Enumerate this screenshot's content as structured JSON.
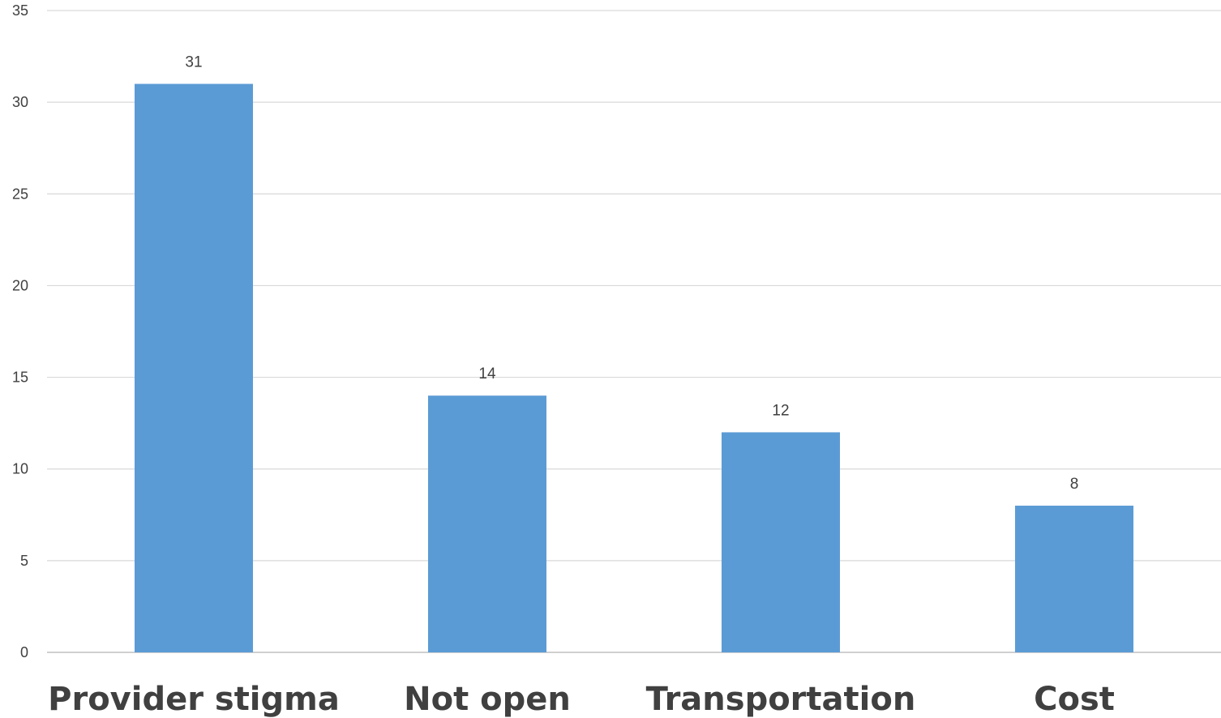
{
  "chart_data": {
    "type": "bar",
    "categories": [
      "Provider stigma",
      "Not open",
      "Transportation",
      "Cost"
    ],
    "values": [
      31,
      14,
      12,
      8
    ],
    "ylim": [
      0,
      35
    ],
    "yticks": [
      0,
      5,
      10,
      15,
      20,
      25,
      30,
      35
    ],
    "grid": true,
    "colors": {
      "bar": "#5b9bd5",
      "grid": "#d9d9d9",
      "text": "#404040"
    }
  }
}
